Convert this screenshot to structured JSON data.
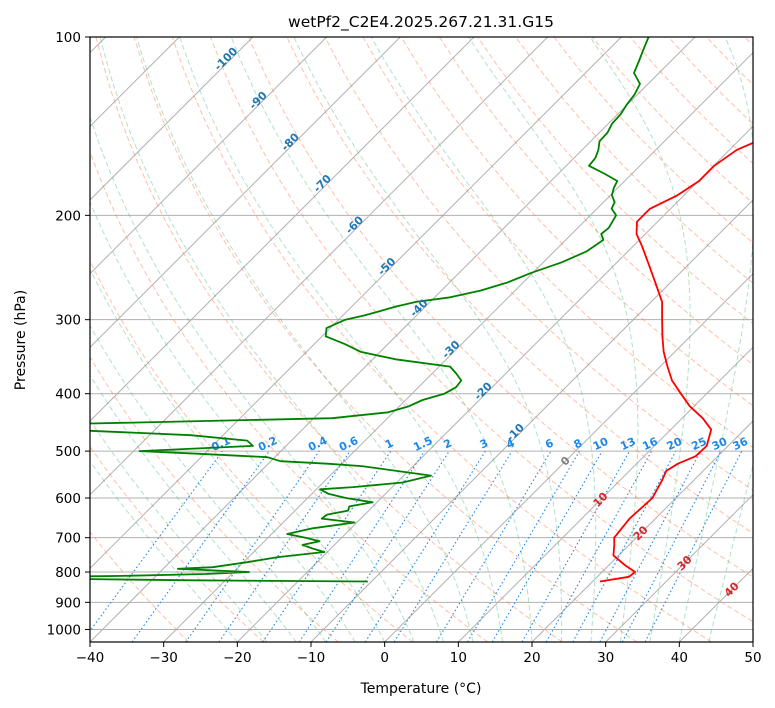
{
  "chart_data": {
    "type": "line",
    "title": "wetPf2_C2E4.2025.267.21.31.G15",
    "xlabel": "Temperature (°C)",
    "ylabel": "Pressure (hPa)",
    "xlim": [
      -40,
      50
    ],
    "ylim": [
      1050,
      100
    ],
    "y_scale": "log",
    "x_ticks": [
      "−40",
      "−30",
      "−20",
      "−10",
      "0",
      "10",
      "20",
      "30",
      "40",
      "50"
    ],
    "y_ticks": [
      "100",
      "200",
      "300",
      "400",
      "500",
      "600",
      "700",
      "800",
      "900",
      "1000"
    ],
    "grid": true,
    "skew": 45,
    "dry_adiabat_labels": [
      "-100",
      "-90",
      "-80",
      "-70",
      "-60",
      "-50",
      "-40",
      "-30",
      "-20",
      "-10"
    ],
    "moist_adiabat_labels": [
      "0",
      "10",
      "20",
      "30",
      "40"
    ],
    "mixing_ratio_labels": [
      "0.1",
      "0.2",
      "0.4",
      "0.6",
      "1",
      "1.5",
      "2",
      "3",
      "4",
      "6",
      "8",
      "10",
      "13",
      "16",
      "20",
      "25",
      "30",
      "36"
    ],
    "series": [
      {
        "color": "#ff0000",
        "p": [
          830,
          815,
          800,
          780,
          750,
          720,
          700,
          650,
          600,
          560,
          540,
          525,
          510,
          490,
          460,
          440,
          420,
          400,
          380,
          360,
          340,
          320,
          300,
          280,
          260,
          240,
          225,
          215,
          205,
          195,
          185,
          175,
          165,
          155,
          145,
          135,
          125,
          118,
          110,
          104,
          100
        ],
        "t": [
          21.0,
          24.3,
          24.5,
          22.3,
          19.3,
          18.0,
          17.0,
          16.5,
          16.8,
          15.7,
          15.0,
          15.6,
          17.0,
          17.1,
          15.5,
          12.8,
          9.4,
          6.5,
          3.5,
          1.0,
          -1.5,
          -3.8,
          -6.1,
          -8.5,
          -12.0,
          -15.8,
          -18.9,
          -21.2,
          -22.8,
          -22.8,
          -20.9,
          -19.9,
          -19.9,
          -19.0,
          -15.9,
          -12.9,
          -12.0,
          -13.1,
          -14.3,
          -16.3,
          -17.9
        ]
      },
      {
        "color": "#008000",
        "p": [
          830,
          826,
          822,
          818,
          815,
          812,
          806,
          800,
          795,
          790,
          785,
          770,
          755,
          740,
          730,
          720,
          710,
          700,
          690,
          675,
          660,
          650,
          640,
          630,
          620,
          610,
          600,
          590,
          580,
          575,
          565,
          550,
          530,
          525,
          520,
          512,
          505,
          500,
          490,
          480,
          470,
          460,
          455,
          450,
          440,
          430,
          420,
          410,
          400,
          390,
          380,
          370,
          360,
          350,
          340,
          330,
          320,
          310,
          300,
          295,
          285,
          280,
          275,
          268,
          260,
          250,
          240,
          230,
          220,
          215,
          210,
          200,
          195,
          190,
          185,
          180,
          175,
          170,
          165,
          160,
          155,
          150,
          145,
          140,
          135,
          130,
          125,
          120,
          115,
          110,
          105,
          100
        ],
        "t": [
          -10.5,
          -34.5,
          -50.3,
          -51.3,
          -54.3,
          -44.5,
          -33.5,
          -27.9,
          -33.0,
          -38.0,
          -33.5,
          -29.5,
          -26.0,
          -20.4,
          -22.5,
          -24.3,
          -22.5,
          -24.9,
          -27.9,
          -25.2,
          -20.3,
          -25.3,
          -25.1,
          -22.8,
          -23.2,
          -20.6,
          -24.8,
          -27.8,
          -29.5,
          -25.3,
          -19.2,
          -16.3,
          -27.0,
          -32.0,
          -38.7,
          -41.0,
          -51.0,
          -59.2,
          -44.5,
          -46.0,
          -54.4,
          -72.5,
          -77.5,
          -72.5,
          -37.5,
          -30.7,
          -28.7,
          -27.7,
          -25.6,
          -24.9,
          -25.1,
          -26.7,
          -28.5,
          -36.9,
          -42.6,
          -45.8,
          -49.5,
          -50.5,
          -49.1,
          -47.0,
          -44.0,
          -41.9,
          -37.9,
          -34.7,
          -32.2,
          -30.2,
          -27.5,
          -25.6,
          -24.9,
          -26.0,
          -25.8,
          -26.5,
          -28.0,
          -28.5,
          -29.8,
          -30.5,
          -31.0,
          -33.8,
          -36.9,
          -37.1,
          -37.8,
          -38.8,
          -38.9,
          -39.5,
          -39.6,
          -40.1,
          -40.4,
          -41.1,
          -43.4,
          -44.3,
          -45.3,
          -46.3
        ]
      }
    ]
  },
  "colors": {
    "temperature": "#ff0000",
    "dewpoint": "#008000",
    "dry_adiabats": "#ff7f50",
    "moist_adiabats": "#3cb371",
    "mixing_ratio": "#1e88e5",
    "dry_adiabat_labels": "#1f77b4",
    "moist_adiabat_labels": "#d62728",
    "zero_label": "#808080",
    "grid": "#b0b0b0"
  }
}
